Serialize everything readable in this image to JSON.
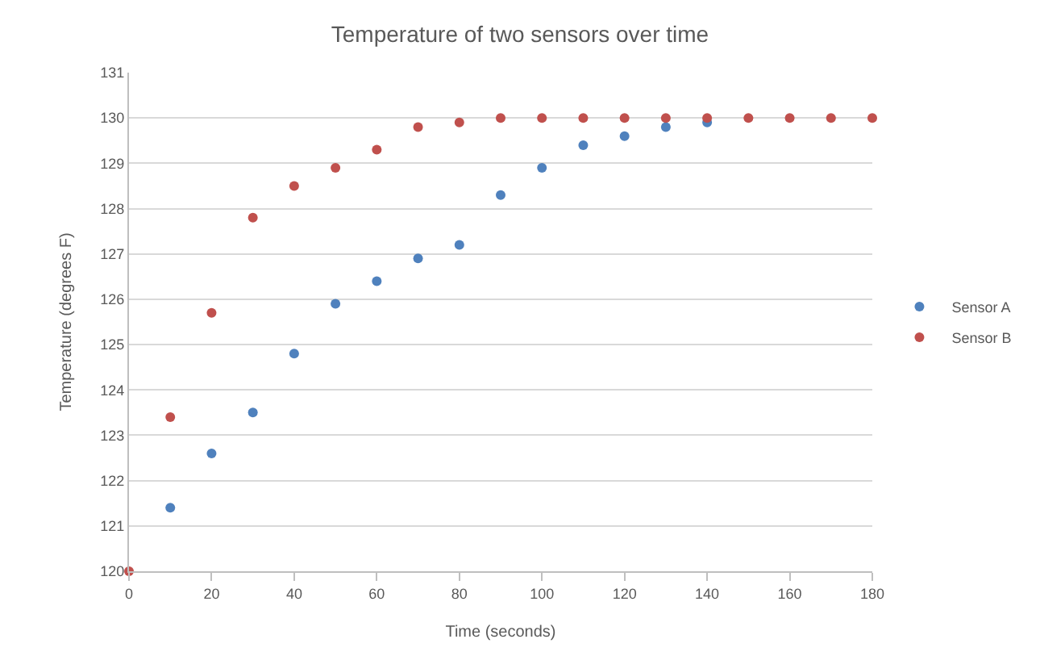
{
  "chart_data": {
    "type": "scatter",
    "title": "Temperature of two sensors over time",
    "xlabel": "Time (seconds)",
    "ylabel": "Temperature (degrees F)",
    "x": [
      0,
      10,
      20,
      30,
      40,
      50,
      60,
      70,
      80,
      90,
      100,
      110,
      120,
      130,
      140,
      150,
      160,
      170,
      180
    ],
    "series": [
      {
        "name": "Sensor A",
        "color": "#4f81bd",
        "values": [
          null,
          121.4,
          122.6,
          123.5,
          124.8,
          125.9,
          126.4,
          126.9,
          127.2,
          128.3,
          128.9,
          129.4,
          129.6,
          129.8,
          129.9,
          null,
          null,
          null,
          null
        ]
      },
      {
        "name": "Sensor B",
        "color": "#c0504d",
        "values": [
          120,
          123.4,
          125.7,
          127.8,
          128.5,
          128.9,
          129.3,
          129.8,
          129.9,
          130,
          130,
          130,
          130,
          130,
          130,
          130,
          130,
          130,
          130
        ]
      }
    ],
    "xlim": [
      0,
      180
    ],
    "xticks": [
      0,
      20,
      40,
      60,
      80,
      100,
      120,
      140,
      160,
      180
    ],
    "ylim": [
      120,
      131
    ],
    "yticks": [
      120,
      121,
      122,
      123,
      124,
      125,
      126,
      127,
      128,
      129,
      130,
      131
    ],
    "grid": "y",
    "legend": "right",
    "marker": "circle"
  }
}
